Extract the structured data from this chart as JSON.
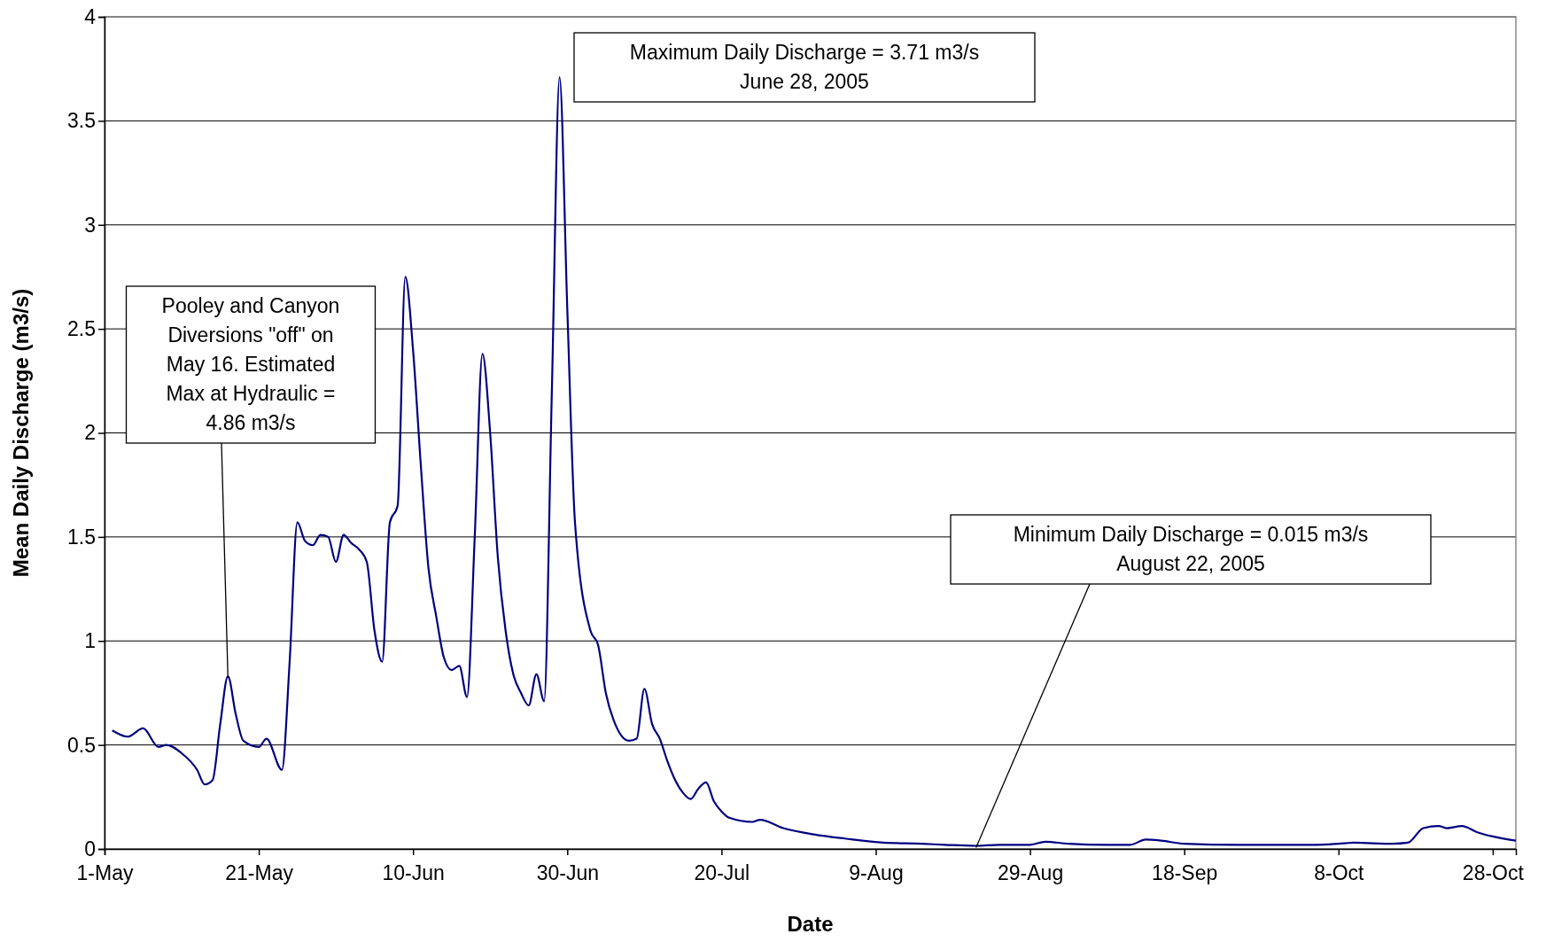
{
  "chart_data": {
    "type": "line",
    "xlabel": "Date",
    "ylabel": "Mean Daily Discharge (m3/s)",
    "x": [
      "2005-05-02",
      "2005-05-04",
      "2005-05-06",
      "2005-05-08",
      "2005-05-09",
      "2005-05-11",
      "2005-05-13",
      "2005-05-14",
      "2005-05-15",
      "2005-05-16",
      "2005-05-17",
      "2005-05-18",
      "2005-05-19",
      "2005-05-21",
      "2005-05-22",
      "2005-05-24",
      "2005-05-25",
      "2005-05-26",
      "2005-05-27",
      "2005-05-28",
      "2005-05-29",
      "2005-05-30",
      "2005-05-31",
      "2005-06-01",
      "2005-06-02",
      "2005-06-03",
      "2005-06-04",
      "2005-06-05",
      "2005-06-06",
      "2005-06-07",
      "2005-06-08",
      "2005-06-09",
      "2005-06-10",
      "2005-06-11",
      "2005-06-12",
      "2005-06-13",
      "2005-06-14",
      "2005-06-15",
      "2005-06-16",
      "2005-06-17",
      "2005-06-18",
      "2005-06-19",
      "2005-06-20",
      "2005-06-21",
      "2005-06-22",
      "2005-06-23",
      "2005-06-24",
      "2005-06-25",
      "2005-06-26",
      "2005-06-27",
      "2005-06-28",
      "2005-06-29",
      "2005-06-30",
      "2005-07-01",
      "2005-07-03",
      "2005-07-04",
      "2005-07-05",
      "2005-07-06",
      "2005-07-08",
      "2005-07-09",
      "2005-07-10",
      "2005-07-11",
      "2005-07-12",
      "2005-07-13",
      "2005-07-14",
      "2005-07-15",
      "2005-07-16",
      "2005-07-17",
      "2005-07-18",
      "2005-07-19",
      "2005-07-20",
      "2005-07-21",
      "2005-07-24",
      "2005-07-25",
      "2005-07-28",
      "2005-08-01",
      "2005-08-05",
      "2005-08-10",
      "2005-08-15",
      "2005-08-18",
      "2005-08-22",
      "2005-08-25",
      "2005-08-29",
      "2005-08-31",
      "2005-09-03",
      "2005-09-08",
      "2005-09-11",
      "2005-09-13",
      "2005-09-15",
      "2005-09-18",
      "2005-09-25",
      "2005-10-05",
      "2005-10-08",
      "2005-10-10",
      "2005-10-15",
      "2005-10-17",
      "2005-10-19",
      "2005-10-21",
      "2005-10-22",
      "2005-10-24",
      "2005-10-26",
      "2005-10-28",
      "2005-10-31"
    ],
    "series": [
      {
        "color": "#000080",
        "values": [
          0.57,
          0.54,
          0.58,
          0.49,
          0.5,
          0.46,
          0.38,
          0.31,
          0.33,
          0.6,
          0.83,
          0.65,
          0.52,
          0.49,
          0.53,
          0.38,
          0.9,
          1.57,
          1.48,
          1.46,
          1.51,
          1.5,
          1.38,
          1.51,
          1.47,
          1.44,
          1.38,
          1.05,
          0.9,
          1.57,
          1.65,
          2.75,
          2.4,
          1.85,
          1.35,
          1.12,
          0.92,
          0.86,
          0.88,
          0.73,
          1.5,
          2.38,
          2.0,
          1.4,
          1.05,
          0.84,
          0.75,
          0.69,
          0.84,
          0.71,
          2.2,
          3.71,
          2.6,
          1.57,
          1.05,
          0.98,
          0.75,
          0.62,
          0.52,
          0.53,
          0.77,
          0.6,
          0.53,
          0.42,
          0.33,
          0.27,
          0.24,
          0.29,
          0.32,
          0.23,
          0.18,
          0.15,
          0.13,
          0.14,
          0.1,
          0.07,
          0.05,
          0.03,
          0.025,
          0.02,
          0.015,
          0.02,
          0.02,
          0.035,
          0.025,
          0.02,
          0.02,
          0.045,
          0.04,
          0.025,
          0.02,
          0.02,
          0.025,
          0.03,
          0.025,
          0.03,
          0.1,
          0.11,
          0.1,
          0.11,
          0.08,
          0.06,
          0.04
        ]
      }
    ],
    "xlim": [
      "2005-05-01",
      "2005-10-31"
    ],
    "xticks": [
      {
        "value": "2005-05-01",
        "label": "1-May"
      },
      {
        "value": "2005-05-21",
        "label": "21-May"
      },
      {
        "value": "2005-06-10",
        "label": "10-Jun"
      },
      {
        "value": "2005-06-30",
        "label": "30-Jun"
      },
      {
        "value": "2005-07-20",
        "label": "20-Jul"
      },
      {
        "value": "2005-08-09",
        "label": "9-Aug"
      },
      {
        "value": "2005-08-29",
        "label": "29-Aug"
      },
      {
        "value": "2005-09-18",
        "label": "18-Sep"
      },
      {
        "value": "2005-10-08",
        "label": "8-Oct"
      },
      {
        "value": "2005-10-28",
        "label": "28-Oct"
      }
    ],
    "ylim": [
      0,
      4
    ],
    "yticks": [
      0,
      0.5,
      1,
      1.5,
      2,
      2.5,
      3,
      3.5,
      4
    ],
    "grid": "y",
    "marker": "none",
    "line_style": "solid",
    "annotations": [
      {
        "text": "Pooley and Canyon\nDiversions \"off\" on\nMay 16. Estimated\nMax at Hydraulic =\n4.86 m3/s",
        "x": "2005-05-17",
        "y": 0.83
      },
      "Maximum Daily Discharge = 3.71 m3/s\nJune 28, 2005",
      {
        "text": "Minimum Daily Discharge = 0.015 m3/s\nAugust 22, 2005",
        "x": "2005-08-22",
        "y": 0.015
      }
    ]
  }
}
